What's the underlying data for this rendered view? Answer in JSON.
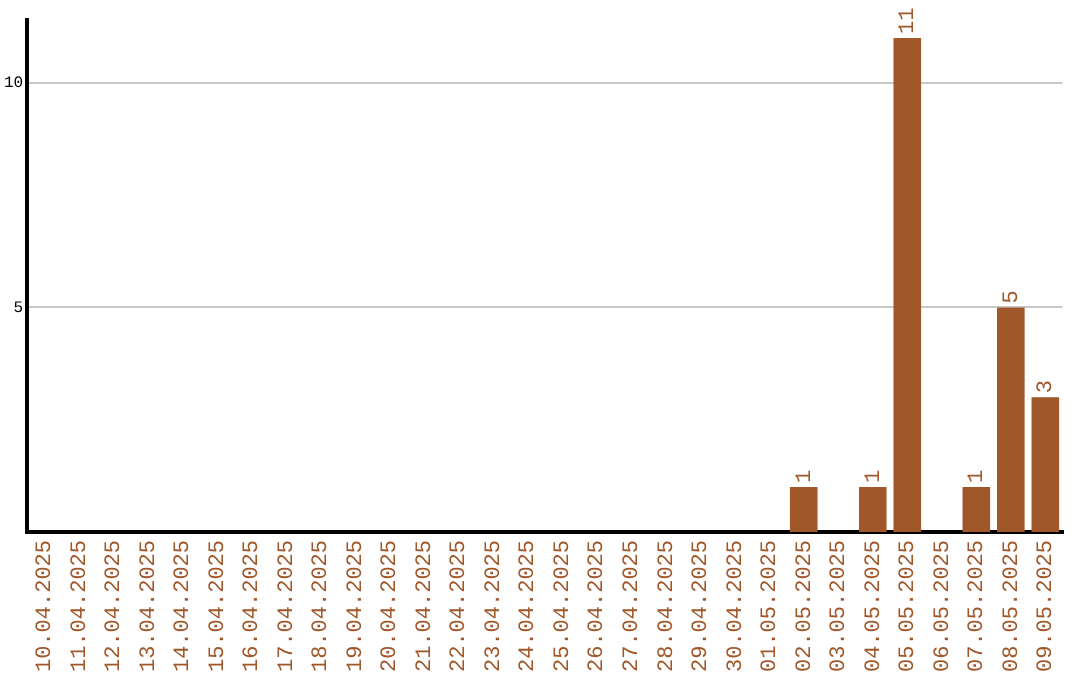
{
  "chart_data": {
    "type": "bar",
    "categories": [
      "10.04.2025",
      "11.04.2025",
      "12.04.2025",
      "13.04.2025",
      "14.04.2025",
      "15.04.2025",
      "16.04.2025",
      "17.04.2025",
      "18.04.2025",
      "19.04.2025",
      "20.04.2025",
      "21.04.2025",
      "22.04.2025",
      "23.04.2025",
      "24.04.2025",
      "25.04.2025",
      "26.04.2025",
      "27.04.2025",
      "28.04.2025",
      "29.04.2025",
      "30.04.2025",
      "01.05.2025",
      "02.05.2025",
      "03.05.2025",
      "04.05.2025",
      "05.05.2025",
      "06.05.2025",
      "07.05.2025",
      "08.05.2025",
      "09.05.2025"
    ],
    "values": [
      0,
      0,
      0,
      0,
      0,
      0,
      0,
      0,
      0,
      0,
      0,
      0,
      0,
      0,
      0,
      0,
      0,
      0,
      0,
      0,
      0,
      0,
      1,
      0,
      1,
      11,
      0,
      1,
      5,
      3
    ],
    "value_labels": [
      null,
      null,
      null,
      null,
      null,
      null,
      null,
      null,
      null,
      null,
      null,
      null,
      null,
      null,
      null,
      null,
      null,
      null,
      null,
      null,
      null,
      null,
      "1",
      null,
      "1",
      "11",
      null,
      "1",
      "5",
      "3"
    ],
    "color": "#a0582a",
    "ylim": [
      0,
      11.4
    ],
    "yticks": [
      5,
      10
    ],
    "grid": "y",
    "legend": false
  }
}
